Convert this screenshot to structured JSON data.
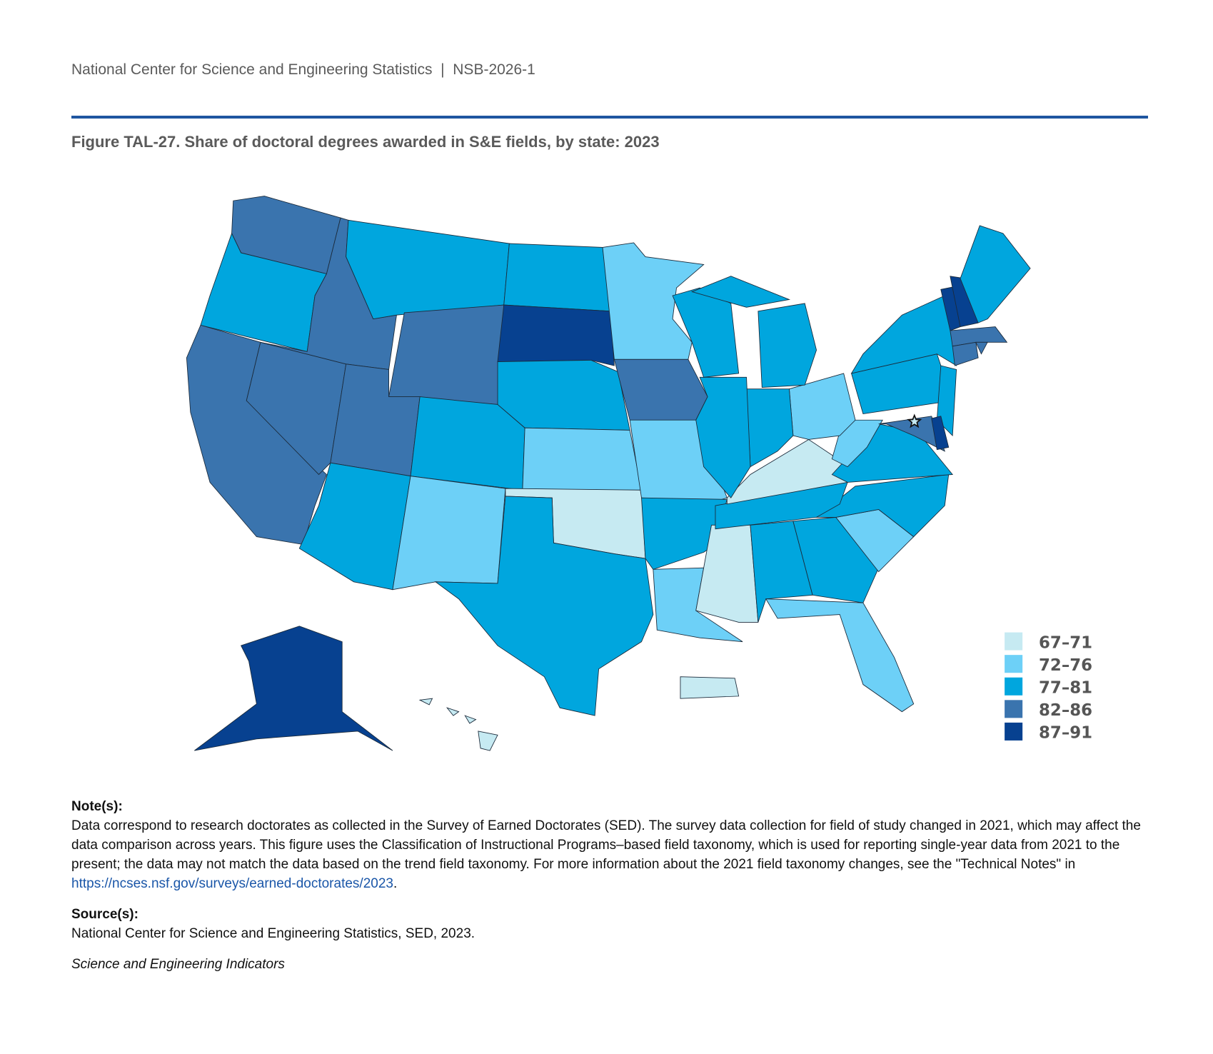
{
  "header": {
    "org": "National Center for Science and Engineering Statistics",
    "sep": "|",
    "report": "NSB-2026-1"
  },
  "title": "Figure TAL-27. Share of doctoral degrees awarded in S&E fields, by state: 2023",
  "notes": {
    "label": "Note(s):",
    "text": "Data correspond to research doctorates as collected in the Survey of Earned Doctorates (SED). The survey data collection for field of study changed in 2021, which may affect the data comparison across years. This figure uses the Classification of Instructional Programs–based field taxonomy, which is used for reporting single-year data from 2021 to the present; the data may not match the data based on the trend field taxonomy. For more information about the 2021 field taxonomy changes, see the \"Technical Notes\" in ",
    "link": "https://ncses.nsf.gov/surveys/earned-doctorates/2023",
    "end": "."
  },
  "source": {
    "label": "Source(s):",
    "text": "National Center for Science and Engineering Statistics, SED, 2023."
  },
  "footer": "Science and Engineering Indicators",
  "chart_data": {
    "type": "choropleth",
    "title": "Share of doctoral degrees awarded in S&E fields, by state: 2023",
    "unit": "percent",
    "legend_position": "bottom-right",
    "bins": [
      {
        "label": "67–71",
        "color": "#c6eaf2"
      },
      {
        "label": "72–76",
        "color": "#6dd0f7"
      },
      {
        "label": "77–81",
        "color": "#00a6de"
      },
      {
        "label": "82–86",
        "color": "#3a74ae"
      },
      {
        "label": "87–91",
        "color": "#074190"
      }
    ],
    "states": {
      "KY": "67–71",
      "OK": "67–71",
      "MS": "67–71",
      "HI": "67–71",
      "PR": "67–71",
      "DC": "67–71",
      "MN": "72–76",
      "KS": "72–76",
      "NM": "72–76",
      "MO": "72–76",
      "OH": "72–76",
      "WV": "72–76",
      "LA": "72–76",
      "SC": "72–76",
      "FL": "72–76",
      "OR": "77–81",
      "MT": "77–81",
      "ND": "77–81",
      "NE": "77–81",
      "CO": "77–81",
      "AZ": "77–81",
      "TX": "77–81",
      "WI": "77–81",
      "MI": "77–81",
      "IL": "77–81",
      "IN": "77–81",
      "AR": "77–81",
      "TN": "77–81",
      "AL": "77–81",
      "GA": "77–81",
      "NC": "77–81",
      "VA": "77–81",
      "PA": "77–81",
      "NY": "77–81",
      "NJ": "77–81",
      "ME": "77–81",
      "WA": "82–86",
      "ID": "82–86",
      "CA": "82–86",
      "NV": "82–86",
      "UT": "82–86",
      "WY": "82–86",
      "IA": "82–86",
      "MA": "82–86",
      "CT": "82–86",
      "RI": "82–86",
      "MD": "82–86",
      "SD": "87–91",
      "AK": "87–91",
      "VT": "87–91",
      "NH": "87–91",
      "DE": "87–91"
    }
  }
}
